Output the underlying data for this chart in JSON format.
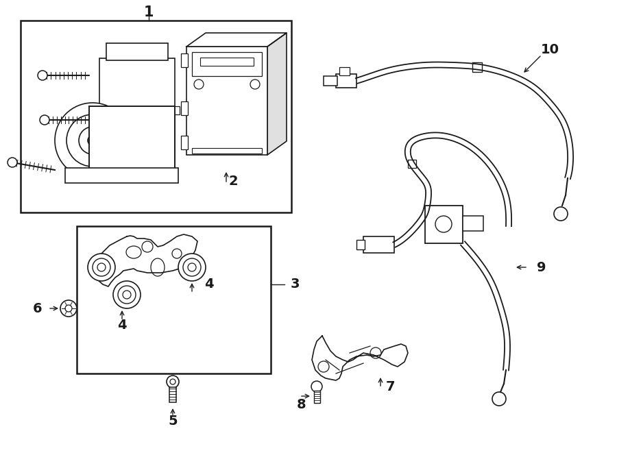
{
  "bg_color": "#ffffff",
  "lc": "#1a1a1a",
  "lw": 1.2,
  "fig_w": 9.0,
  "fig_h": 6.61,
  "dpi": 100,
  "xl": 0,
  "xr": 900,
  "yb": 0,
  "yt": 661
}
